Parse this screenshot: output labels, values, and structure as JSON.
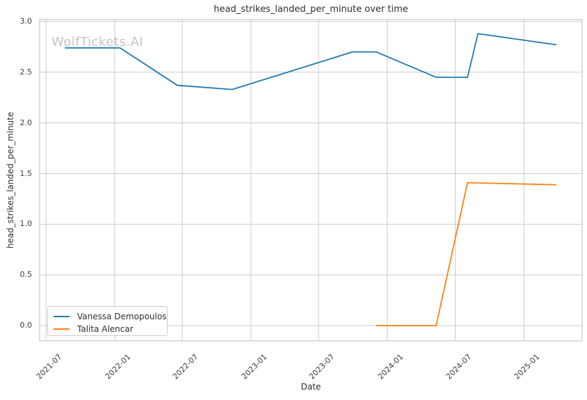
{
  "title": "head_strikes_landed_per_minute over time",
  "watermark": "WolfTickets.AI",
  "colors": {
    "series_blue": "#1f77b4",
    "series_orange": "#ff7f0e",
    "grid": "#cccccc",
    "frame": "#c9c9c9",
    "title_text": "#2e2e2e",
    "tick_text": "#3b3b3b",
    "watermark_text": "#c4c4c4",
    "background": "#ffffff"
  },
  "legend": {
    "items": [
      {
        "label": "Vanessa Demopoulos",
        "color": "#1f77b4"
      },
      {
        "label": "Talita Alencar",
        "color": "#ff7f0e"
      }
    ]
  },
  "chart_data": {
    "type": "line",
    "title": "head_strikes_landed_per_minute over time",
    "xlabel": "Date",
    "ylabel": "head_strikes_landed_per_minute",
    "grid": true,
    "legend_position": "lower left",
    "xlim": [
      "2021-06-14",
      "2025-06-06"
    ],
    "ylim": [
      -0.15,
      3.02
    ],
    "y_ticks": [
      0.0,
      0.5,
      1.0,
      1.5,
      2.0,
      2.5,
      3.0
    ],
    "x_ticks": [
      {
        "label": "2021-07",
        "date": "2021-07-01"
      },
      {
        "label": "2022-01",
        "date": "2022-01-01"
      },
      {
        "label": "2022-07",
        "date": "2022-07-01"
      },
      {
        "label": "2023-01",
        "date": "2023-01-01"
      },
      {
        "label": "2023-07",
        "date": "2023-07-01"
      },
      {
        "label": "2024-01",
        "date": "2024-01-01"
      },
      {
        "label": "2024-07",
        "date": "2024-07-01"
      },
      {
        "label": "2025-01",
        "date": "2025-01-01"
      }
    ],
    "series": [
      {
        "name": "Vanessa Demopoulos",
        "color": "#1f77b4",
        "points": [
          [
            "2021-08-21",
            2.74
          ],
          [
            "2022-01-15",
            2.74
          ],
          [
            "2022-06-18",
            2.37
          ],
          [
            "2022-11-12",
            2.33
          ],
          [
            "2023-09-30",
            2.7
          ],
          [
            "2023-12-02",
            2.7
          ],
          [
            "2024-05-11",
            2.45
          ],
          [
            "2024-08-03",
            2.45
          ],
          [
            "2024-08-31",
            2.88
          ],
          [
            "2025-03-29",
            2.77
          ]
        ]
      },
      {
        "name": "Talita Alencar",
        "color": "#ff7f0e",
        "points": [
          [
            "2023-12-02",
            0.0
          ],
          [
            "2024-05-11",
            0.0
          ],
          [
            "2024-08-03",
            1.41
          ],
          [
            "2025-03-29",
            1.39
          ]
        ]
      }
    ]
  }
}
